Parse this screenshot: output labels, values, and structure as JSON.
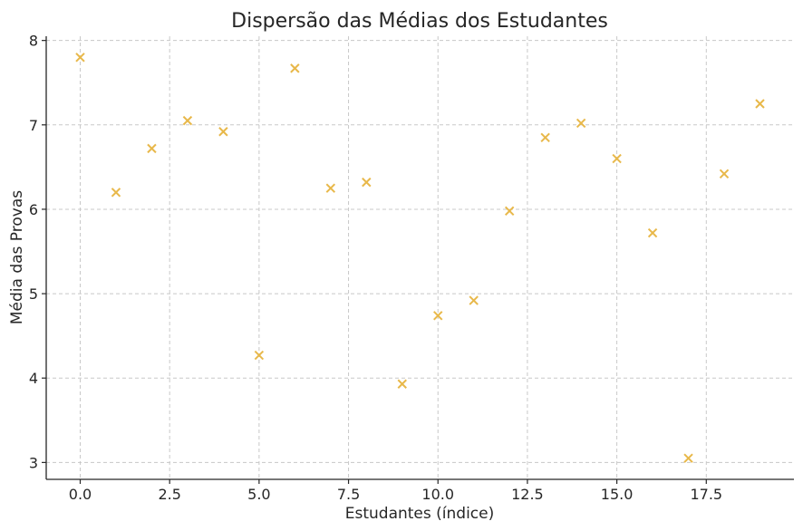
{
  "chart_data": {
    "type": "scatter",
    "title": "Dispersão das Médias dos Estudantes",
    "xlabel": "Estudantes (índice)",
    "ylabel": "Média das Provas",
    "xlim": [
      -0.95,
      19.95
    ],
    "ylim": [
      2.8,
      8.05
    ],
    "xticks": [
      0.0,
      2.5,
      5.0,
      7.5,
      10.0,
      12.5,
      15.0,
      17.5
    ],
    "xtick_labels": [
      "0.0",
      "2.5",
      "5.0",
      "7.5",
      "10.0",
      "12.5",
      "15.0",
      "17.5"
    ],
    "yticks": [
      3,
      4,
      5,
      6,
      7,
      8
    ],
    "ytick_labels": [
      "3",
      "4",
      "5",
      "6",
      "7",
      "8"
    ],
    "grid": true,
    "marker": "x",
    "color": "#e8b84a",
    "x": [
      0,
      1,
      2,
      3,
      4,
      5,
      6,
      7,
      8,
      9,
      10,
      11,
      12,
      13,
      14,
      15,
      16,
      17,
      18,
      19
    ],
    "y": [
      7.8,
      6.2,
      6.72,
      7.05,
      6.92,
      4.27,
      7.67,
      6.25,
      6.32,
      3.93,
      4.74,
      4.92,
      5.98,
      6.85,
      7.02,
      6.6,
      5.72,
      3.05,
      6.42,
      7.25
    ]
  }
}
